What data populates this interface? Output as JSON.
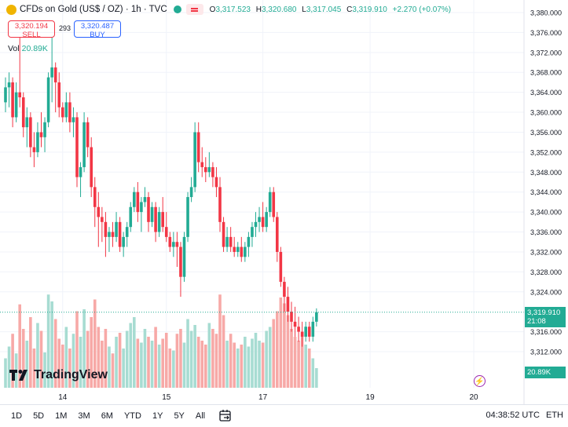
{
  "legend": {
    "symbol": "CFDs on Gold (US$ / OZ) · 1h · TVC",
    "ohlc": [
      {
        "label": "O",
        "value": "3,317.523"
      },
      {
        "label": "H",
        "value": "3,320.680"
      },
      {
        "label": "L",
        "value": "3,317.045"
      },
      {
        "label": "C",
        "value": "3,319.910"
      }
    ],
    "change": "+2.270 (+0.07%)"
  },
  "trade": {
    "sell_price": "3,320.194",
    "sell_label": "SELL",
    "spread": "293",
    "buy_price": "3,320.487",
    "buy_label": "BUY"
  },
  "volume_legend": {
    "label": "Vol",
    "value": "20.89K"
  },
  "price_badge": {
    "price": "3,319.910",
    "countdown": "21:08"
  },
  "volume_badge": "20.89K",
  "logo_text": "TradingView",
  "footer": {
    "ranges": [
      "1D",
      "5D",
      "1M",
      "3M",
      "6M",
      "YTD",
      "1Y",
      "5Y",
      "All"
    ],
    "clock": "04:38:52 UTC",
    "timezone_label": "ETH"
  },
  "colors": {
    "up": "#22ab94",
    "down": "#f23645",
    "vol_up": "#a7dcd2",
    "vol_down": "#f7a9a7"
  },
  "chart_data": {
    "type": "candlestick",
    "yaxis_ticks": [
      3380,
      3376,
      3372,
      3368,
      3364,
      3360,
      3356,
      3352,
      3348,
      3344,
      3340,
      3336,
      3332,
      3328,
      3324,
      3316,
      3312
    ],
    "yaxis_tick_labels": [
      "3,380.000",
      "3,376.000",
      "3,372.000",
      "3,368.000",
      "3,364.000",
      "3,360.000",
      "3,356.000",
      "3,352.000",
      "3,348.000",
      "3,344.000",
      "3,340.000",
      "3,336.000",
      "3,332.000",
      "3,328.000",
      "3,324.000",
      "3,316.000",
      "3,312.000"
    ],
    "ylim": [
      3310,
      3380
    ],
    "xaxis_labels": [
      {
        "label": "14",
        "index": 16
      },
      {
        "label": "15",
        "index": 45
      },
      {
        "label": "17",
        "index": 72
      },
      {
        "label": "19",
        "index": 102
      },
      {
        "label": "20",
        "index": 131
      }
    ],
    "last_price": 3319.91,
    "candles": [
      [
        3362,
        3367,
        3360,
        3365
      ],
      [
        3365,
        3368,
        3361,
        3366
      ],
      [
        3366,
        3367,
        3357,
        3359
      ],
      [
        3359,
        3366,
        3358,
        3364
      ],
      [
        3364,
        3375,
        3361,
        3363
      ],
      [
        3363,
        3364,
        3355,
        3357
      ],
      [
        3357,
        3361,
        3353,
        3359
      ],
      [
        3359,
        3360,
        3351,
        3353
      ],
      [
        3353,
        3356,
        3349,
        3352
      ],
      [
        3352,
        3358,
        3351,
        3356
      ],
      [
        3356,
        3360,
        3353,
        3355
      ],
      [
        3355,
        3359,
        3352,
        3358
      ],
      [
        3358,
        3368,
        3357,
        3367
      ],
      [
        3367,
        3375,
        3362,
        3369
      ],
      [
        3369,
        3370,
        3360,
        3366
      ],
      [
        3366,
        3368,
        3359,
        3361
      ],
      [
        3361,
        3362,
        3358,
        3359
      ],
      [
        3359,
        3364,
        3358,
        3362
      ],
      [
        3362,
        3364,
        3356,
        3358
      ],
      [
        3358,
        3361,
        3355,
        3359
      ],
      [
        3359,
        3360,
        3345,
        3347
      ],
      [
        3347,
        3350,
        3343,
        3349
      ],
      [
        3349,
        3360,
        3348,
        3358
      ],
      [
        3358,
        3359,
        3351,
        3353
      ],
      [
        3353,
        3355,
        3343,
        3345
      ],
      [
        3345,
        3347,
        3337,
        3341
      ],
      [
        3341,
        3344,
        3333,
        3339
      ],
      [
        3339,
        3341,
        3334,
        3338
      ],
      [
        3338,
        3340,
        3331,
        3335
      ],
      [
        3335,
        3337,
        3332,
        3336
      ],
      [
        3336,
        3338,
        3333,
        3335
      ],
      [
        3335,
        3340,
        3334,
        3338
      ],
      [
        3338,
        3339,
        3332,
        3333
      ],
      [
        3333,
        3336,
        3331,
        3335
      ],
      [
        3335,
        3338,
        3333,
        3337
      ],
      [
        3337,
        3342,
        3336,
        3341
      ],
      [
        3341,
        3345,
        3340,
        3344
      ],
      [
        3344,
        3346,
        3338,
        3340
      ],
      [
        3340,
        3343,
        3336,
        3342
      ],
      [
        3342,
        3345,
        3341,
        3343
      ],
      [
        3343,
        3344,
        3336,
        3338
      ],
      [
        3338,
        3342,
        3337,
        3341
      ],
      [
        3341,
        3342,
        3334,
        3336
      ],
      [
        3336,
        3341,
        3335,
        3340
      ],
      [
        3340,
        3343,
        3336,
        3337
      ],
      [
        3337,
        3340,
        3334,
        3335
      ],
      [
        3335,
        3336,
        3332,
        3333
      ],
      [
        3333,
        3336,
        3331,
        3334
      ],
      [
        3334,
        3336,
        3329,
        3333
      ],
      [
        3333,
        3334,
        3323,
        3327
      ],
      [
        3327,
        3336,
        3326,
        3335
      ],
      [
        3335,
        3344,
        3334,
        3343
      ],
      [
        3343,
        3347,
        3342,
        3345
      ],
      [
        3345,
        3358,
        3344,
        3356
      ],
      [
        3356,
        3358,
        3348,
        3350
      ],
      [
        3350,
        3353,
        3347,
        3349
      ],
      [
        3349,
        3351,
        3346,
        3348
      ],
      [
        3348,
        3352,
        3347,
        3349
      ],
      [
        3349,
        3350,
        3345,
        3347
      ],
      [
        3347,
        3349,
        3343,
        3345
      ],
      [
        3345,
        3347,
        3336,
        3338
      ],
      [
        3338,
        3339,
        3332,
        3333
      ],
      [
        3333,
        3337,
        3332,
        3335
      ],
      [
        3335,
        3337,
        3332,
        3333
      ],
      [
        3333,
        3335,
        3331,
        3332
      ],
      [
        3332,
        3334,
        3331,
        3333
      ],
      [
        3333,
        3335,
        3330,
        3331
      ],
      [
        3331,
        3334,
        3330,
        3333
      ],
      [
        3333,
        3336,
        3331,
        3335
      ],
      [
        3335,
        3338,
        3333,
        3337
      ],
      [
        3337,
        3340,
        3335,
        3338
      ],
      [
        3338,
        3341,
        3336,
        3339
      ],
      [
        3339,
        3342,
        3336,
        3337
      ],
      [
        3337,
        3341,
        3336,
        3340
      ],
      [
        3340,
        3345,
        3339,
        3344
      ],
      [
        3344,
        3345,
        3338,
        3339
      ],
      [
        3339,
        3340,
        3330,
        3332
      ],
      [
        3332,
        3333,
        3325,
        3326
      ],
      [
        3326,
        3327,
        3320,
        3323
      ],
      [
        3323,
        3325,
        3318,
        3320
      ],
      [
        3320,
        3322,
        3316,
        3318
      ],
      [
        3318,
        3321,
        3315,
        3317
      ],
      [
        3317,
        3319,
        3314,
        3316
      ],
      [
        3316,
        3318,
        3313,
        3315
      ],
      [
        3315,
        3318,
        3314,
        3317
      ],
      [
        3317,
        3318,
        3314,
        3315
      ],
      [
        3315,
        3319,
        3314,
        3318
      ],
      [
        3318,
        3320.68,
        3317.045,
        3319.91
      ]
    ],
    "volumes": [
      0.3,
      0.42,
      0.55,
      0.35,
      0.85,
      0.6,
      0.48,
      0.72,
      0.4,
      0.66,
      0.58,
      0.36,
      0.95,
      0.88,
      0.7,
      0.5,
      0.44,
      0.62,
      0.4,
      0.55,
      0.78,
      0.52,
      0.8,
      0.58,
      0.72,
      0.9,
      0.62,
      0.48,
      0.6,
      0.42,
      0.35,
      0.52,
      0.56,
      0.4,
      0.58,
      0.66,
      0.72,
      0.5,
      0.46,
      0.6,
      0.52,
      0.48,
      0.62,
      0.44,
      0.5,
      0.56,
      0.4,
      0.38,
      0.55,
      0.6,
      0.46,
      0.7,
      0.58,
      0.64,
      0.52,
      0.48,
      0.44,
      0.66,
      0.6,
      0.55,
      0.95,
      0.74,
      0.48,
      0.55,
      0.46,
      0.4,
      0.44,
      0.52,
      0.42,
      0.5,
      0.56,
      0.48,
      0.46,
      0.58,
      0.62,
      0.7,
      0.78,
      0.92,
      0.86,
      0.74,
      0.6,
      0.52,
      0.48,
      0.56,
      0.44,
      0.4,
      0.3,
      0.2
    ]
  }
}
